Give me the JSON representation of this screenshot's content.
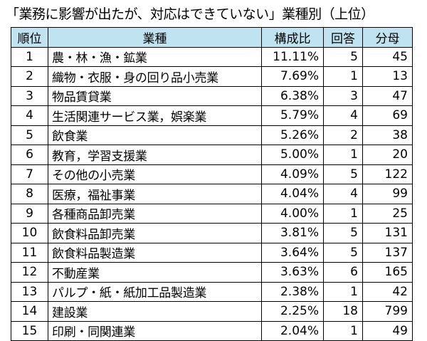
{
  "chart_data": {
    "type": "table",
    "title": "「業務に影響が出たが、対応はできていない」業種別（上位）",
    "columns": [
      "順位",
      "業種",
      "構成比",
      "回答",
      "分母"
    ],
    "rows": [
      {
        "rank": "1",
        "industry": "農・林・漁・鉱業",
        "ratio": "11.11%",
        "answers": "5",
        "denominator": "45"
      },
      {
        "rank": "2",
        "industry": "織物・衣服・身の回り品小売業",
        "ratio": "7.69%",
        "answers": "1",
        "denominator": "13"
      },
      {
        "rank": "3",
        "industry": "物品賃貸業",
        "ratio": "6.38%",
        "answers": "3",
        "denominator": "47"
      },
      {
        "rank": "4",
        "industry": "生活関連サービス業，娯楽業",
        "ratio": "5.79%",
        "answers": "4",
        "denominator": "69"
      },
      {
        "rank": "5",
        "industry": "飲食業",
        "ratio": "5.26%",
        "answers": "2",
        "denominator": "38"
      },
      {
        "rank": "6",
        "industry": "教育，学習支援業",
        "ratio": "5.00%",
        "answers": "1",
        "denominator": "20"
      },
      {
        "rank": "7",
        "industry": "その他の小売業",
        "ratio": "4.09%",
        "answers": "5",
        "denominator": "122"
      },
      {
        "rank": "8",
        "industry": "医療，福祉事業",
        "ratio": "4.04%",
        "answers": "4",
        "denominator": "99"
      },
      {
        "rank": "9",
        "industry": "各種商品卸売業",
        "ratio": "4.00%",
        "answers": "1",
        "denominator": "25"
      },
      {
        "rank": "10",
        "industry": "飲食料品卸売業",
        "ratio": "3.81%",
        "answers": "5",
        "denominator": "131"
      },
      {
        "rank": "11",
        "industry": "飲食料品製造業",
        "ratio": "3.64%",
        "answers": "5",
        "denominator": "137"
      },
      {
        "rank": "12",
        "industry": "不動産業",
        "ratio": "3.63%",
        "answers": "6",
        "denominator": "165"
      },
      {
        "rank": "13",
        "industry": "パルプ・紙・紙加工品製造業",
        "ratio": "2.38%",
        "answers": "1",
        "denominator": "42"
      },
      {
        "rank": "14",
        "industry": "建設業",
        "ratio": "2.25%",
        "answers": "18",
        "denominator": "799"
      },
      {
        "rank": "15",
        "industry": "印刷・同関連業",
        "ratio": "2.04%",
        "answers": "1",
        "denominator": "49"
      }
    ]
  },
  "colors": {
    "header_bg": "#bfe3f0",
    "border": "#000000"
  }
}
